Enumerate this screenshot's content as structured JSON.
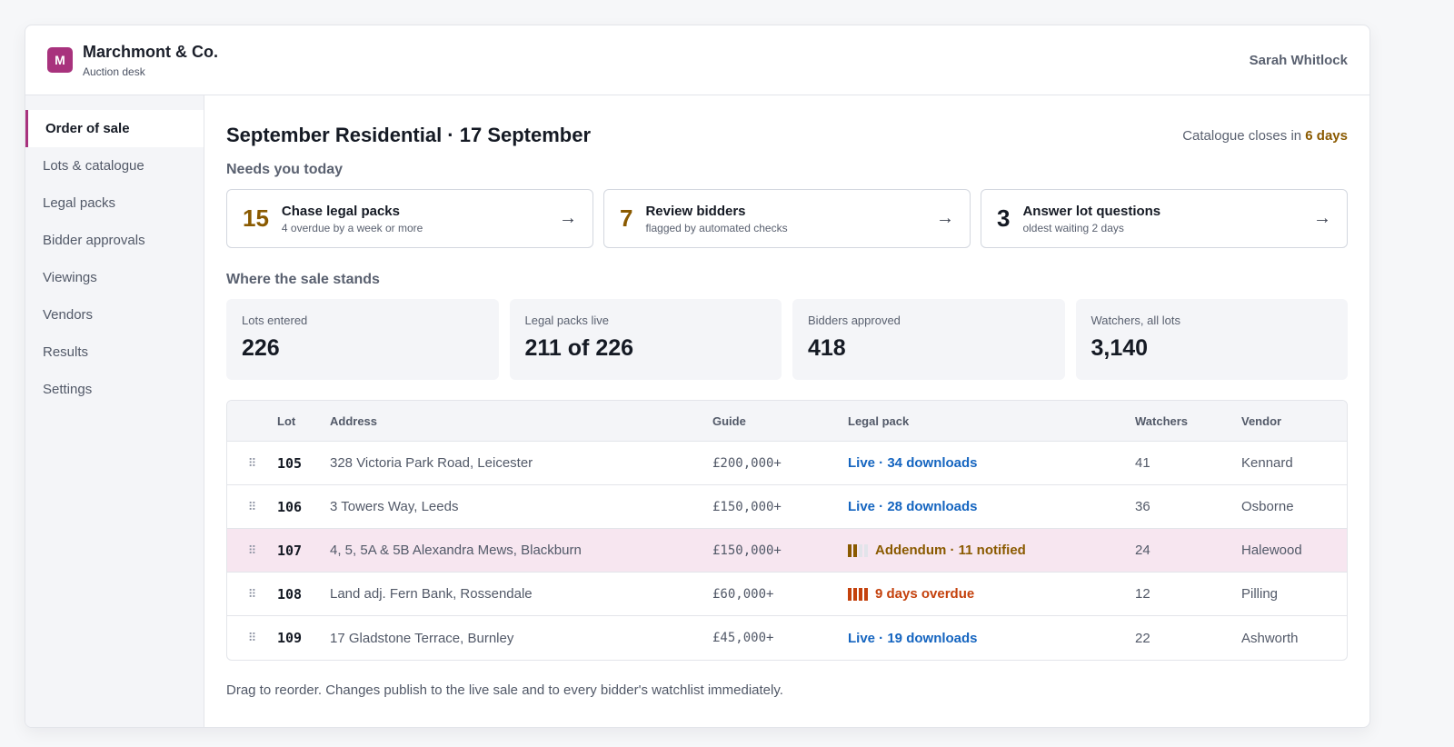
{
  "app": {
    "logo_letter": "M",
    "brand_name": "Marchmont & Co.",
    "brand_sub": "Auction desk",
    "user_name": "Sarah Whitlock",
    "accent": "#a8327d"
  },
  "sidebar": {
    "items": [
      {
        "label": "Order of sale",
        "active": true
      },
      {
        "label": "Lots & catalogue"
      },
      {
        "label": "Legal packs"
      },
      {
        "label": "Bidder approvals"
      },
      {
        "label": "Viewings"
      },
      {
        "label": "Vendors"
      },
      {
        "label": "Results"
      },
      {
        "label": "Settings"
      }
    ]
  },
  "main": {
    "title": "September Residential · 17 September",
    "closes_prefix": "Catalogue closes in ",
    "closes_value": "6 days",
    "needs_label": "Needs you today",
    "tasks": [
      {
        "count": "15",
        "title": "Chase legal packs",
        "sub": "4 overdue by a week or more",
        "arrow": "→",
        "tone": "amber"
      },
      {
        "count": "7",
        "title": "Review bidders",
        "sub": "flagged by automated checks",
        "arrow": "→",
        "tone": "amber"
      },
      {
        "count": "3",
        "title": "Answer lot questions",
        "sub": "oldest waiting 2 days",
        "arrow": "→",
        "tone": "dark"
      }
    ],
    "stands_label": "Where the sale stands",
    "stats": [
      {
        "label": "Lots entered",
        "value": "226"
      },
      {
        "label": "Legal packs live",
        "value": "211 of 226"
      },
      {
        "label": "Bidders approved",
        "value": "418"
      },
      {
        "label": "Watchers, all lots",
        "value": "3,140"
      }
    ],
    "table": {
      "headers": {
        "lot": "Lot",
        "address": "Address",
        "guide": "Guide",
        "legal": "Legal pack",
        "watchers": "Watchers",
        "vendor": "Vendor"
      },
      "drag_handle": "⠿",
      "rows": [
        {
          "lot": "105",
          "address": "328 Victoria Park Road, Leicester",
          "guide": "£200,000+",
          "legal": "Live · 34 downloads",
          "legal_status": "live",
          "watchers": "41",
          "vendor": "Kennard"
        },
        {
          "lot": "106",
          "address": "3 Towers Way, Leeds",
          "guide": "£150,000+",
          "legal": "Live · 28 downloads",
          "legal_status": "live",
          "watchers": "36",
          "vendor": "Osborne"
        },
        {
          "lot": "107",
          "address": "4, 5, 5A & 5B Alexandra Mews, Blackburn",
          "guide": "£150,000+",
          "legal": "Addendum · 11 notified",
          "legal_status": "addendum",
          "bars_filled": 2,
          "bars_total": 4,
          "watchers": "24",
          "vendor": "Halewood",
          "highlighted": true
        },
        {
          "lot": "108",
          "address": "Land adj. Fern Bank, Rossendale",
          "guide": "£60,000+",
          "legal": "9 days overdue",
          "legal_status": "overdue",
          "bars_filled": 4,
          "bars_total": 4,
          "watchers": "12",
          "vendor": "Pilling"
        },
        {
          "lot": "109",
          "address": "17 Gladstone Terrace, Burnley",
          "guide": "£45,000+",
          "legal": "Live · 19 downloads",
          "legal_status": "live",
          "watchers": "22",
          "vendor": "Ashworth"
        }
      ]
    },
    "footnote": "Drag to reorder. Changes publish to the live sale and to every bidder's watchlist immediately."
  }
}
